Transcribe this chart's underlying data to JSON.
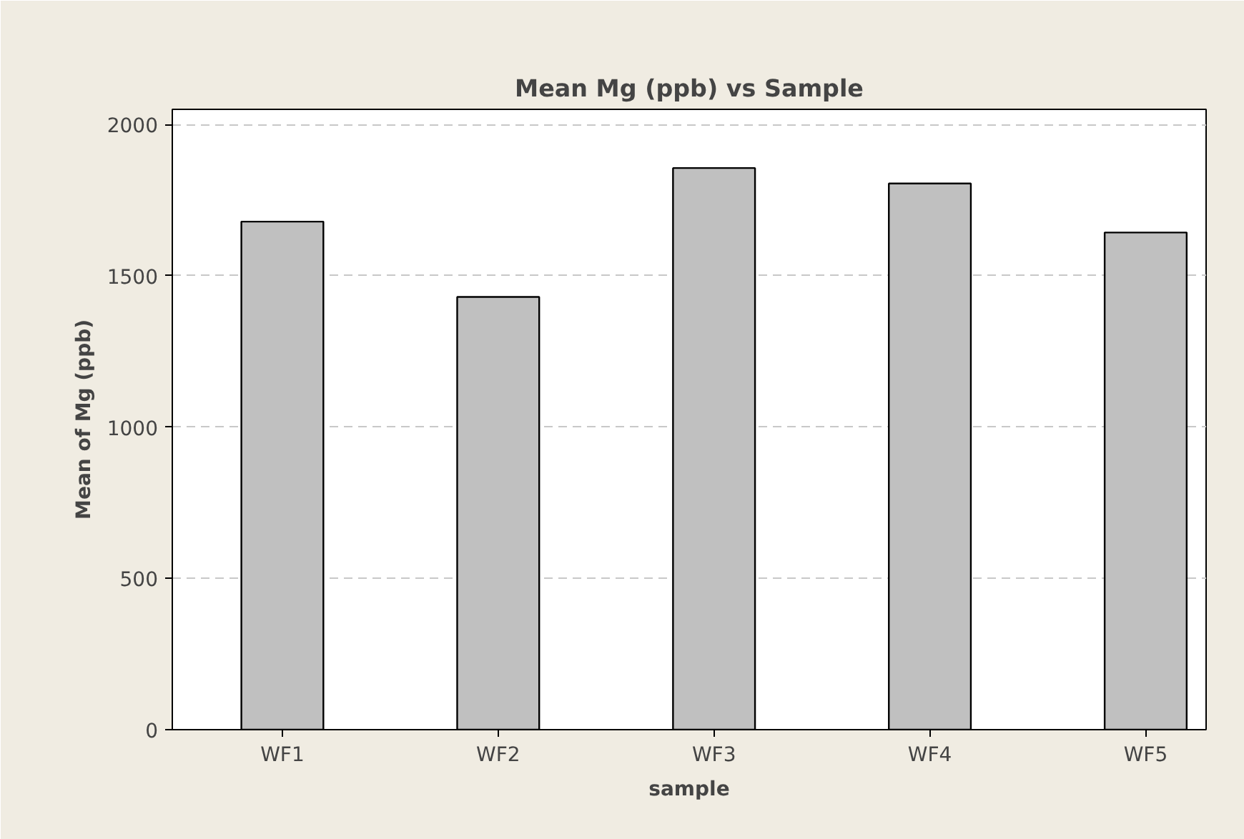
{
  "chart_data": {
    "type": "bar",
    "title": "Mean Mg (ppb) vs Sample",
    "xlabel": "sample",
    "ylabel": "Mean of Mg (ppb)",
    "categories": [
      "WF1",
      "WF2",
      "WF3",
      "WF4",
      "WF5"
    ],
    "values": [
      1679,
      1430,
      1856,
      1805,
      1643
    ],
    "color": "#c0c0c0",
    "ylim": [
      0,
      2050
    ],
    "yticks": [
      0,
      500,
      1000,
      1500,
      2000
    ],
    "grid": "y"
  }
}
